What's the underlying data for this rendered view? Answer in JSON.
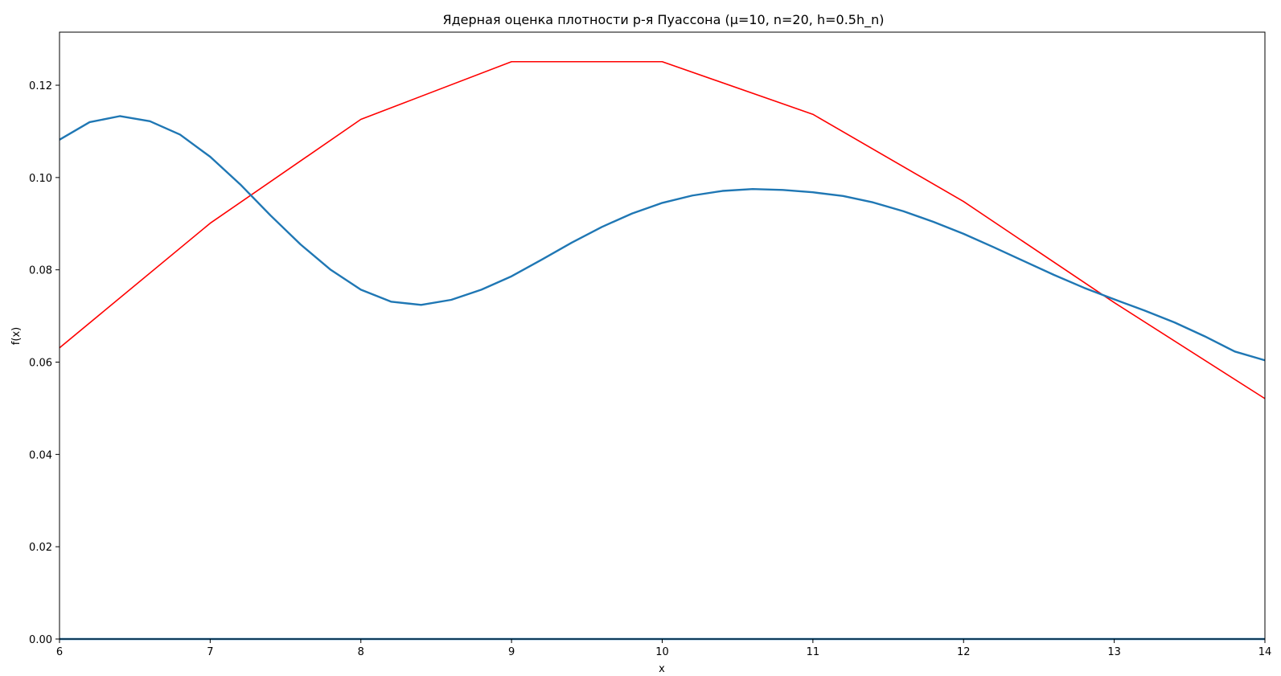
{
  "chart_data": {
    "type": "line",
    "title": "Ядерная оценка плотности р-я Пуассона (μ=10, n=20, h=0.5h_n)",
    "xlabel": "x",
    "ylabel": "f(x)",
    "xlim": [
      6,
      14
    ],
    "ylim": [
      0,
      0.1315
    ],
    "grid": false,
    "x_ticks": [
      {
        "value": 6,
        "label": "6"
      },
      {
        "value": 7,
        "label": "7"
      },
      {
        "value": 8,
        "label": "8"
      },
      {
        "value": 9,
        "label": "9"
      },
      {
        "value": 10,
        "label": "10"
      },
      {
        "value": 11,
        "label": "11"
      },
      {
        "value": 12,
        "label": "12"
      },
      {
        "value": 13,
        "label": "13"
      },
      {
        "value": 14,
        "label": "14"
      }
    ],
    "y_ticks": [
      {
        "value": 0.0,
        "label": "0.00"
      },
      {
        "value": 0.02,
        "label": "0.02"
      },
      {
        "value": 0.04,
        "label": "0.04"
      },
      {
        "value": 0.06,
        "label": "0.06"
      },
      {
        "value": 0.08,
        "label": "0.08"
      },
      {
        "value": 0.1,
        "label": "0.10"
      },
      {
        "value": 0.12,
        "label": "0.12"
      }
    ],
    "series": [
      {
        "color": "#ff0000",
        "width": 1.6,
        "x": [
          6,
          7,
          8,
          9,
          10,
          11,
          12,
          13,
          14
        ],
        "y": [
          0.0631,
          0.0901,
          0.1126,
          0.1251,
          0.1251,
          0.1137,
          0.0948,
          0.0729,
          0.0521
        ]
      },
      {
        "color": "#1f77b4",
        "width": 2.4,
        "x": [
          6.0,
          6.2,
          6.4,
          6.6,
          6.8,
          7.0,
          7.2,
          7.4,
          7.6,
          7.8,
          8.0,
          8.2,
          8.4,
          8.6,
          8.8,
          9.0,
          9.2,
          9.4,
          9.6,
          9.8,
          10.0,
          10.2,
          10.4,
          10.6,
          10.8,
          11.0,
          11.2,
          11.4,
          11.6,
          11.8,
          12.0,
          12.2,
          12.4,
          12.6,
          12.8,
          13.0,
          13.2,
          13.4,
          13.6,
          13.8,
          14.0
        ],
        "y": [
          0.1082,
          0.112,
          0.1133,
          0.1122,
          0.1093,
          0.1045,
          0.0985,
          0.0918,
          0.0855,
          0.08,
          0.0757,
          0.0731,
          0.0724,
          0.0735,
          0.0757,
          0.0786,
          0.0822,
          0.0859,
          0.0893,
          0.0922,
          0.0945,
          0.0961,
          0.0971,
          0.0975,
          0.0973,
          0.0968,
          0.096,
          0.0946,
          0.0927,
          0.0904,
          0.0878,
          0.0849,
          0.0819,
          0.0789,
          0.0761,
          0.0736,
          0.0712,
          0.0686,
          0.0656,
          0.0623,
          0.0604
        ]
      },
      {
        "color": "#1f77b4",
        "width": 2.4,
        "x": [
          6,
          14
        ],
        "y": [
          0,
          0
        ]
      }
    ]
  }
}
